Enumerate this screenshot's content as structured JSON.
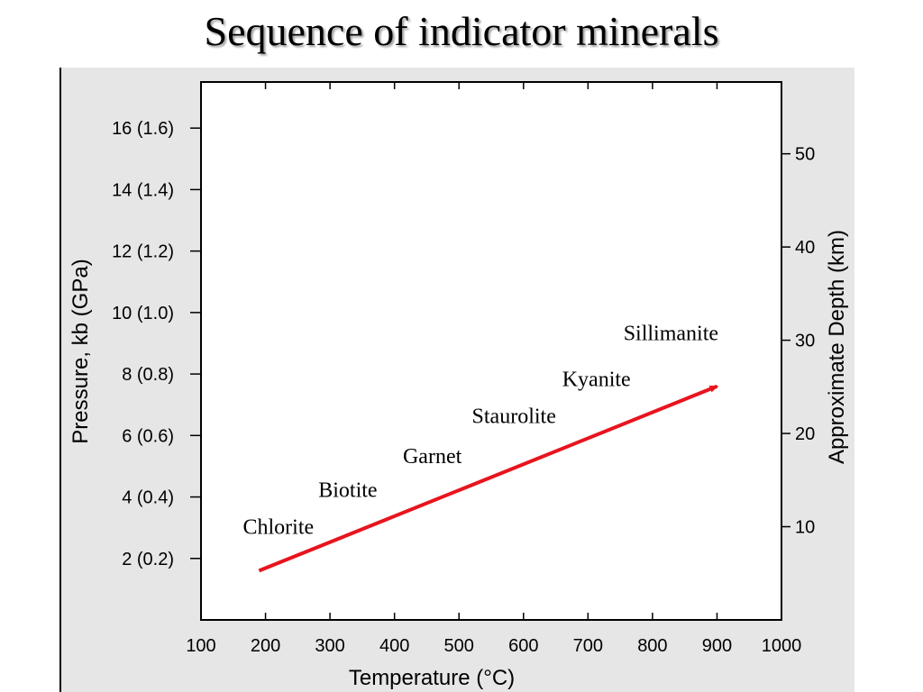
{
  "slide": {
    "title": "Sequence of indicator minerals"
  },
  "chart_data": {
    "type": "line",
    "xlabel": "Temperature (°C)",
    "ylabel": "Pressure, kb (GPa)",
    "y2label": "Approximate Depth (km)",
    "xlim": [
      100,
      1000
    ],
    "ylim": [
      0,
      17.5
    ],
    "y2lim": [
      0,
      57.7
    ],
    "x_ticks": [
      "100",
      "200",
      "300",
      "400",
      "500",
      "600",
      "700",
      "800",
      "900",
      "1000"
    ],
    "x_tick_values": [
      100,
      200,
      300,
      400,
      500,
      600,
      700,
      800,
      900,
      1000
    ],
    "y_ticks": [
      "2 (0.2)",
      "4 (0.4)",
      "6 (0.6)",
      "8 (0.8)",
      "10 (1.0)",
      "12 (1.2)",
      "14 (1.4)",
      "16 (1.6)"
    ],
    "y_tick_values": [
      2,
      4,
      6,
      8,
      10,
      12,
      14,
      16
    ],
    "y2_ticks": [
      "10",
      "20",
      "30",
      "40",
      "50"
    ],
    "y2_tick_values": [
      10,
      20,
      30,
      40,
      50
    ],
    "arrow": {
      "x": [
        190,
        900
      ],
      "y": [
        1.6,
        7.6
      ],
      "color": "#e8141e"
    },
    "annotations": [
      {
        "text": "Chlorite",
        "x": 165,
        "y": 2.8
      },
      {
        "text": "Biotite",
        "x": 282,
        "y": 4.0
      },
      {
        "text": "Garnet",
        "x": 413,
        "y": 5.1
      },
      {
        "text": "Staurolite",
        "x": 520,
        "y": 6.4
      },
      {
        "text": "Kyanite",
        "x": 660,
        "y": 7.6
      },
      {
        "text": "Sillimanite",
        "x": 755,
        "y": 9.1
      }
    ],
    "grid": false,
    "legend": "none"
  }
}
